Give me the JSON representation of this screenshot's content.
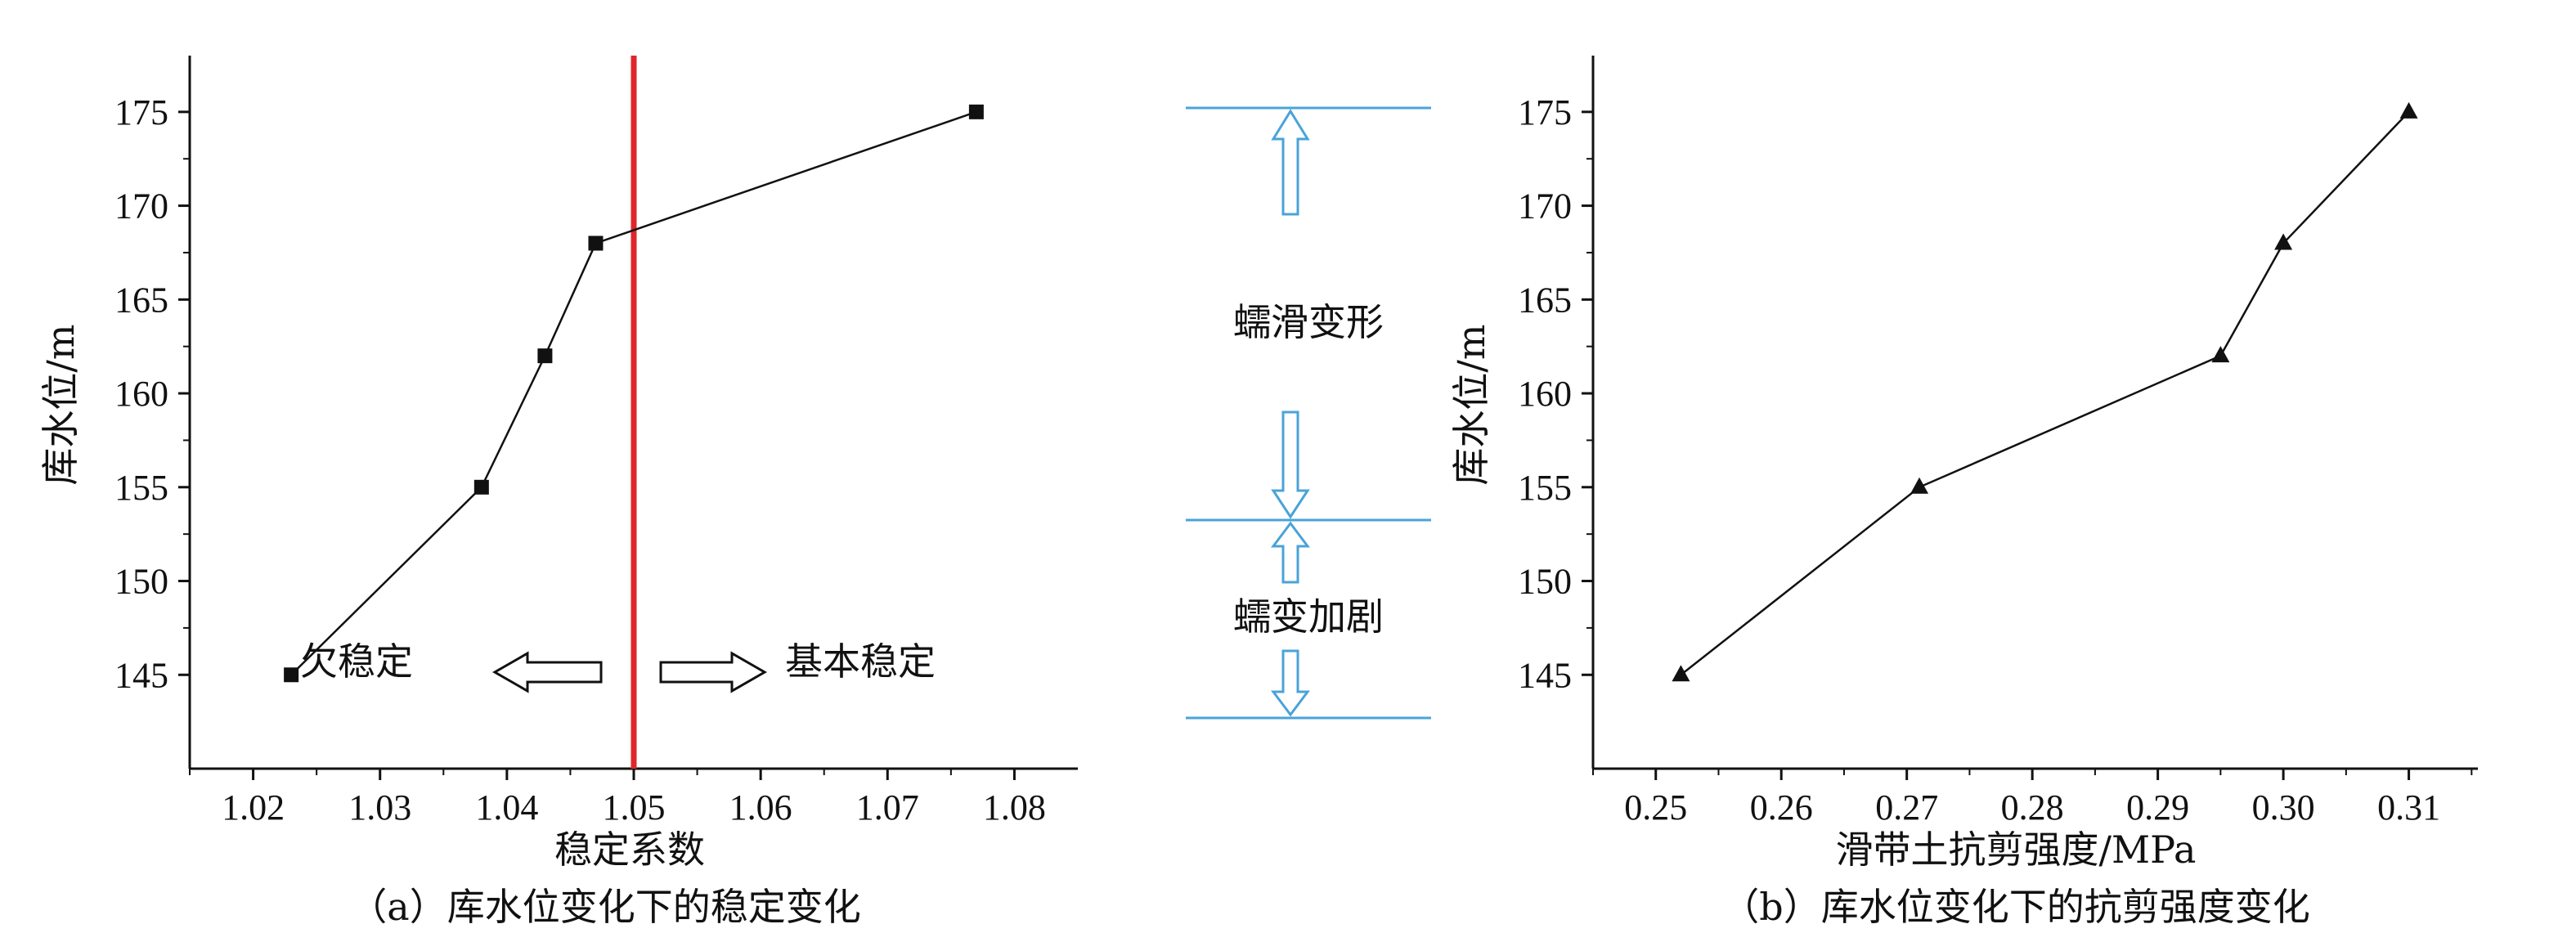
{
  "chart_data": [
    {
      "type": "line",
      "x": [
        1.023,
        1.038,
        1.043,
        1.047,
        1.077
      ],
      "y": [
        145,
        155,
        162,
        168,
        175
      ],
      "marker": "square",
      "xlabel": "稳定系数",
      "ylabel": "库水位/m",
      "xlim": [
        1.015,
        1.085
      ],
      "ylim": [
        140,
        178
      ],
      "xticks": [
        "1.02",
        "1.03",
        "1.04",
        "1.05",
        "1.06",
        "1.07",
        "1.08"
      ],
      "yticks": [
        "145",
        "150",
        "155",
        "160",
        "165",
        "170",
        "175"
      ],
      "threshold": {
        "x": 1.05,
        "color": "#e0262b"
      },
      "annotations": {
        "left": "欠稳定",
        "right": "基本稳定"
      },
      "caption": "（a）库水位变化下的稳定变化"
    },
    {
      "type": "line",
      "x": [
        0.252,
        0.271,
        0.295,
        0.3,
        0.31
      ],
      "y": [
        145,
        155,
        162,
        168,
        175
      ],
      "marker": "triangle",
      "xlabel": "滑带土抗剪强度/MPa",
      "ylabel": "库水位/m",
      "xlim": [
        0.245,
        0.3155
      ],
      "ylim": [
        140,
        178
      ],
      "xticks": [
        "0.25",
        "0.26",
        "0.27",
        "0.28",
        "0.29",
        "0.30",
        "0.31"
      ],
      "yticks": [
        "145",
        "150",
        "155",
        "160",
        "165",
        "170",
        "175"
      ],
      "caption": "（b）库水位变化下的抗剪强度变化"
    }
  ],
  "legend_panel": {
    "levels": [
      175,
      155,
      145
    ],
    "labels": [
      "蠕滑变形",
      "蠕变加剧"
    ],
    "color": "#4aa3d8"
  }
}
